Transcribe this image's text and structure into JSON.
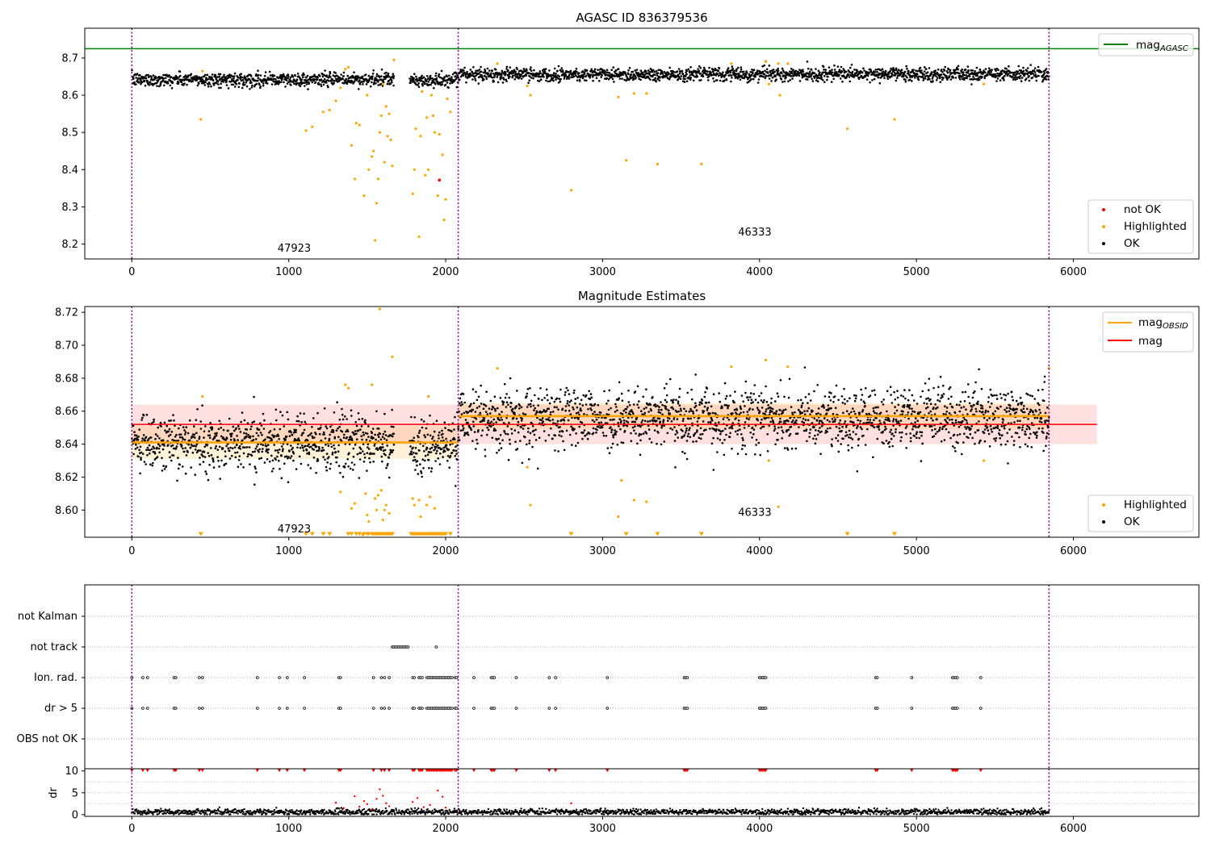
{
  "chart_data": [
    {
      "type": "scatter",
      "title": "AGASC ID 836379536",
      "xlim": [
        -300,
        6800
      ],
      "ylim": [
        8.16,
        8.78
      ],
      "xticks": [
        0,
        1000,
        2000,
        3000,
        4000,
        5000,
        6000
      ],
      "yticks": [
        8.2,
        8.3,
        8.4,
        8.5,
        8.6,
        8.7
      ],
      "vlines": [
        0,
        2080,
        5845
      ],
      "hline": {
        "name": "mag",
        "sub": "AGASC",
        "value": 8.725,
        "color": "#008000"
      },
      "obsid_labels": [
        {
          "text": "47923",
          "x": 1035,
          "y": 8.18
        },
        {
          "text": "46333",
          "x": 3970,
          "y": 8.223
        }
      ],
      "legend_top": [
        {
          "name": "mag",
          "sub": "AGASC",
          "color": "#008000"
        }
      ],
      "legend_bottom": [
        {
          "name": "not OK",
          "color": "#ff0000"
        },
        {
          "name": "Highlighted",
          "color": "#ffa500"
        },
        {
          "name": "OK",
          "color": "#000000"
        }
      ],
      "series": [
        {
          "name": "OK",
          "color": "#000000",
          "segments": [
            {
              "x0": 0,
              "x1": 1670,
              "mean": 8.642,
              "spread": 0.009
            },
            {
              "x0": 1770,
              "x1": 2080,
              "mean": 8.639,
              "spread": 0.009
            },
            {
              "x0": 2080,
              "x1": 5845,
              "mean": 8.656,
              "spread": 0.009
            }
          ]
        },
        {
          "name": "Highlighted",
          "color": "#ffa500",
          "points": [
            [
              440,
              8.535
            ],
            [
              450,
              8.665
            ],
            [
              1110,
              8.505
            ],
            [
              1150,
              8.515
            ],
            [
              1220,
              8.555
            ],
            [
              1260,
              8.56
            ],
            [
              1300,
              8.585
            ],
            [
              1330,
              8.62
            ],
            [
              1360,
              8.67
            ],
            [
              1380,
              8.675
            ],
            [
              1400,
              8.465
            ],
            [
              1420,
              8.375
            ],
            [
              1430,
              8.525
            ],
            [
              1450,
              8.52
            ],
            [
              1480,
              8.33
            ],
            [
              1500,
              8.6
            ],
            [
              1510,
              8.4
            ],
            [
              1530,
              8.435
            ],
            [
              1540,
              8.45
            ],
            [
              1550,
              8.21
            ],
            [
              1560,
              8.31
            ],
            [
              1570,
              8.375
            ],
            [
              1580,
              8.5
            ],
            [
              1590,
              8.545
            ],
            [
              1600,
              8.63
            ],
            [
              1610,
              8.42
            ],
            [
              1620,
              8.57
            ],
            [
              1630,
              8.49
            ],
            [
              1640,
              8.55
            ],
            [
              1650,
              8.48
            ],
            [
              1660,
              8.41
            ],
            [
              1670,
              8.695
            ],
            [
              1790,
              8.335
            ],
            [
              1800,
              8.4
            ],
            [
              1810,
              8.51
            ],
            [
              1830,
              8.22
            ],
            [
              1840,
              8.49
            ],
            [
              1850,
              8.61
            ],
            [
              1870,
              8.385
            ],
            [
              1880,
              8.54
            ],
            [
              1890,
              8.4
            ],
            [
              1910,
              8.6
            ],
            [
              1920,
              8.545
            ],
            [
              1930,
              8.5
            ],
            [
              1950,
              8.33
            ],
            [
              1960,
              8.495
            ],
            [
              1980,
              8.44
            ],
            [
              1990,
              8.265
            ],
            [
              2000,
              8.32
            ],
            [
              2010,
              8.59
            ],
            [
              2030,
              8.555
            ],
            [
              2330,
              8.685
            ],
            [
              2520,
              8.625
            ],
            [
              2540,
              8.6
            ],
            [
              2800,
              8.345
            ],
            [
              3100,
              8.595
            ],
            [
              3150,
              8.425
            ],
            [
              3200,
              8.605
            ],
            [
              3280,
              8.605
            ],
            [
              3350,
              8.415
            ],
            [
              3630,
              8.415
            ],
            [
              3820,
              8.685
            ],
            [
              4040,
              8.69
            ],
            [
              4060,
              8.63
            ],
            [
              4120,
              8.685
            ],
            [
              4130,
              8.6
            ],
            [
              4180,
              8.685
            ],
            [
              4560,
              8.51
            ],
            [
              4860,
              8.535
            ],
            [
              5430,
              8.63
            ]
          ]
        },
        {
          "name": "not OK",
          "color": "#ff0000",
          "points": [
            [
              1960,
              8.372
            ]
          ]
        }
      ]
    },
    {
      "type": "scatter",
      "title": "Magnitude Estimates",
      "xlim": [
        -300,
        6800
      ],
      "ylim": [
        8.5835,
        8.7235
      ],
      "xticks": [
        0,
        1000,
        2000,
        3000,
        4000,
        5000,
        6000
      ],
      "yticks": [
        8.6,
        8.62,
        8.64,
        8.66,
        8.68,
        8.7,
        8.72
      ],
      "vlines": [
        0,
        2080,
        5845
      ],
      "mag": {
        "value": 8.652,
        "band": 0.012,
        "x0": 0,
        "x1": 6150,
        "color": "#ff0000"
      },
      "mag_obsid": [
        {
          "x0": 0,
          "x1": 2080,
          "value": 8.641,
          "band": 0.01
        },
        {
          "x0": 2080,
          "x1": 5845,
          "value": 8.657,
          "band": 0.008
        }
      ],
      "obsid_labels": [
        {
          "text": "47923",
          "x": 1035,
          "y": 8.5865
        },
        {
          "text": "46333",
          "x": 3970,
          "y": 8.5965
        }
      ],
      "legend_top": [
        {
          "name": "mag",
          "sub": "OBSID",
          "color": "#ffa500"
        },
        {
          "name": "mag",
          "sub": "",
          "color": "#ff0000"
        }
      ],
      "legend_bottom": [
        {
          "name": "Highlighted",
          "color": "#ffa500"
        },
        {
          "name": "OK",
          "color": "#000000"
        }
      ],
      "clipped_x": [
        440,
        1110,
        1150,
        1220,
        1260,
        1380,
        1400,
        1430,
        1450,
        1480,
        1500,
        1510,
        1530,
        1540,
        1550,
        1560,
        1570,
        1580,
        1590,
        1600,
        1610,
        1620,
        1630,
        1640,
        1650,
        1660,
        1780,
        1790,
        1800,
        1810,
        1820,
        1830,
        1840,
        1850,
        1860,
        1870,
        1880,
        1890,
        1900,
        1910,
        1920,
        1930,
        1940,
        1950,
        1960,
        1970,
        1980,
        1990,
        2000,
        2030,
        2800,
        3150,
        3350,
        3630,
        4560,
        4860
      ],
      "series": [
        {
          "name": "OK",
          "color": "#000000",
          "segments": [
            {
              "x0": 0,
              "x1": 1670,
              "mean": 8.641,
              "spread": 0.0085
            },
            {
              "x0": 1770,
              "x1": 2080,
              "mean": 8.639,
              "spread": 0.0085
            },
            {
              "x0": 2080,
              "x1": 5845,
              "mean": 8.656,
              "spread": 0.009
            }
          ]
        },
        {
          "name": "Highlighted",
          "color": "#ffa500",
          "points": [
            [
              450,
              8.669
            ],
            [
              1330,
              8.611
            ],
            [
              1360,
              8.676
            ],
            [
              1380,
              8.674
            ],
            [
              1400,
              8.601
            ],
            [
              1420,
              8.604
            ],
            [
              1470,
              8.585
            ],
            [
              1490,
              8.61
            ],
            [
              1500,
              8.597
            ],
            [
              1510,
              8.593
            ],
            [
              1530,
              8.676
            ],
            [
              1550,
              8.607
            ],
            [
              1560,
              8.6
            ],
            [
              1570,
              8.609
            ],
            [
              1580,
              8.722
            ],
            [
              1590,
              8.612
            ],
            [
              1600,
              8.594
            ],
            [
              1610,
              8.6
            ],
            [
              1620,
              8.603
            ],
            [
              1640,
              8.598
            ],
            [
              1660,
              8.693
            ],
            [
              1790,
              8.607
            ],
            [
              1800,
              8.603
            ],
            [
              1830,
              8.606
            ],
            [
              1840,
              8.596
            ],
            [
              1880,
              8.603
            ],
            [
              1890,
              8.669
            ],
            [
              1900,
              8.608
            ],
            [
              1930,
              8.601
            ],
            [
              2330,
              8.686
            ],
            [
              2520,
              8.626
            ],
            [
              2540,
              8.603
            ],
            [
              3100,
              8.596
            ],
            [
              3120,
              8.618
            ],
            [
              3200,
              8.606
            ],
            [
              3280,
              8.605
            ],
            [
              3820,
              8.687
            ],
            [
              4040,
              8.691
            ],
            [
              4060,
              8.63
            ],
            [
              4120,
              8.602
            ],
            [
              4180,
              8.687
            ],
            [
              5430,
              8.63
            ],
            [
              5845,
              8.686
            ]
          ]
        }
      ]
    },
    {
      "type": "scatter",
      "title": "",
      "xlim": [
        -300,
        6800
      ],
      "categories": [
        "not Kalman",
        "not track",
        "Ion. rad.",
        "dr > 5",
        "OBS not OK"
      ],
      "vlines": [
        0,
        2080,
        5845
      ],
      "flags": {
        "not track": [
          1660,
          1670,
          1680,
          1690,
          1700,
          1710,
          1720,
          1730,
          1740,
          1750,
          1760,
          1940
        ],
        "Ion. rad.": [
          0,
          70,
          100,
          270,
          280,
          430,
          450,
          800,
          940,
          990,
          1100,
          1320,
          1330,
          1540,
          1590,
          1610,
          1640,
          1790,
          1800,
          1830,
          1840,
          1850,
          1880,
          1890,
          1900,
          1910,
          1920,
          1930,
          1940,
          1950,
          1960,
          1970,
          1980,
          1990,
          2000,
          2010,
          2020,
          2030,
          2040,
          2060,
          2070,
          2180,
          2290,
          2300,
          2310,
          2450,
          2660,
          2700,
          3030,
          3520,
          3530,
          3540,
          4000,
          4010,
          4020,
          4030,
          4040,
          4740,
          4750,
          4970,
          5230,
          5240,
          5250,
          5260,
          5410
        ],
        "dr > 5": [
          0,
          70,
          100,
          270,
          280,
          430,
          450,
          800,
          940,
          990,
          1100,
          1320,
          1330,
          1540,
          1590,
          1610,
          1640,
          1790,
          1800,
          1830,
          1840,
          1850,
          1880,
          1890,
          1900,
          1910,
          1920,
          1930,
          1940,
          1950,
          1960,
          1970,
          1980,
          1990,
          2000,
          2010,
          2020,
          2030,
          2040,
          2060,
          2070,
          2180,
          2290,
          2300,
          2310,
          2450,
          2660,
          2700,
          3030,
          3520,
          3530,
          3540,
          4000,
          4010,
          4020,
          4030,
          4040,
          4740,
          4750,
          4970,
          5230,
          5240,
          5250,
          5260,
          5410
        ]
      }
    },
    {
      "type": "scatter",
      "title": "",
      "ylabel": "dr",
      "xlim": [
        -300,
        6800
      ],
      "ylim": [
        -0.4,
        10.5
      ],
      "xticks": [
        0,
        1000,
        2000,
        3000,
        4000,
        5000,
        6000
      ],
      "yticks": [
        0,
        5,
        10
      ],
      "vlines": [
        0,
        2080,
        5845
      ],
      "series": [
        {
          "name": "OK",
          "color": "#000000",
          "segments": [
            {
              "x0": 0,
              "x1": 5845,
              "mean": 0.6,
              "spread": 0.35
            }
          ]
        },
        {
          "name": "not OK",
          "color": "#ff0000",
          "capped_value": 10,
          "points": [
            [
              1300,
              2.7
            ],
            [
              1350,
              1.5
            ],
            [
              1420,
              4.2
            ],
            [
              1450,
              1.8
            ],
            [
              1480,
              3.1
            ],
            [
              1500,
              2.4
            ],
            [
              1530,
              1.2
            ],
            [
              1560,
              3.6
            ],
            [
              1580,
              5.8
            ],
            [
              1600,
              4.3
            ],
            [
              1620,
              2.6
            ],
            [
              1640,
              1.9
            ],
            [
              1790,
              2.9
            ],
            [
              1820,
              3.8
            ],
            [
              1860,
              1.7
            ],
            [
              1900,
              2.2
            ],
            [
              1950,
              5.5
            ],
            [
              1980,
              4.1
            ],
            [
              2000,
              1.6
            ],
            [
              2800,
              2.6
            ]
          ]
        }
      ]
    }
  ]
}
